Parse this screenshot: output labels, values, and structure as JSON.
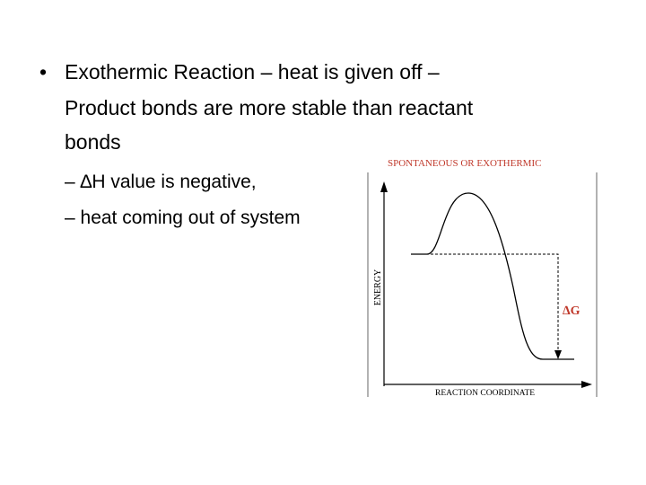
{
  "bullet": {
    "text": "Exothermic Reaction – heat is given off – Product bonds are more stable than reactant bonds",
    "lines": [
      "Exothermic Reaction – heat is given off –",
      "Product bonds are more stable than reactant",
      "bonds"
    ],
    "subitems": [
      "– ∆H value is negative,",
      "– heat coming out of system"
    ]
  },
  "figure": {
    "title": "SPONTANEOUS OR EXOTHERMIC",
    "y_label": "ENERGY",
    "x_label": "REACTION COORDINATE",
    "annotation": "∆G"
  }
}
